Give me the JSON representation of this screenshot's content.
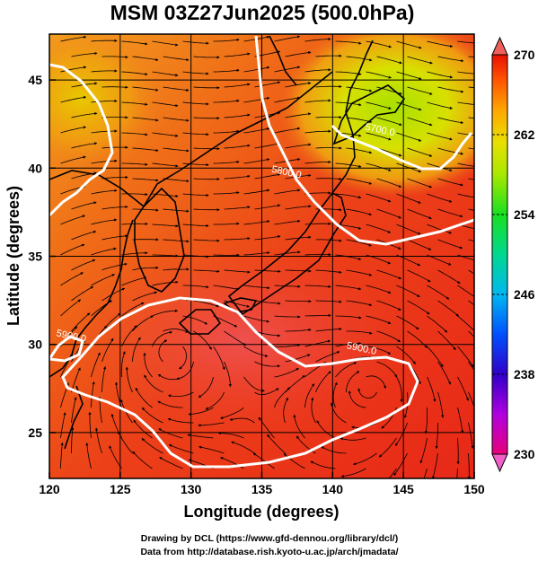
{
  "title": "MSM 03Z27Jun2025 (500.0hPa)",
  "xaxis": {
    "label": "Longitude (degrees)",
    "ticks": [
      120,
      125,
      130,
      135,
      140,
      145,
      150
    ],
    "range": [
      120,
      150
    ]
  },
  "yaxis": {
    "label": "Latitude  (degrees)",
    "ticks": [
      25,
      30,
      35,
      40,
      45
    ],
    "range": [
      22.4,
      47.6
    ]
  },
  "colorbar": {
    "labels": [
      "270",
      "262",
      "254",
      "246",
      "238",
      "230"
    ],
    "range": [
      230,
      270
    ],
    "colors": [
      "#e8007a",
      "#b000e0",
      "#3000c8",
      "#0050ff",
      "#00b8f0",
      "#00d890",
      "#18e020",
      "#a8e800",
      "#e8e000",
      "#ffa800",
      "#ff5000",
      "#e81000"
    ]
  },
  "contours": [
    {
      "label": "5700.0",
      "lon": 143.3,
      "lat": 42.0
    },
    {
      "label": "5800.0",
      "lon": 136.7,
      "lat": 39.6
    },
    {
      "label": "5900.0",
      "lon": 142.0,
      "lat": 29.6
    },
    {
      "label": "5900.0",
      "lon": 121.5,
      "lat": 30.3
    }
  ],
  "credits": [
    "Drawing by DCL (https://www.gfd-dennou.org/library/dcl/)",
    "Data from http://database.rish.kyoto-u.ac.jp/arch/jmadata/"
  ]
}
